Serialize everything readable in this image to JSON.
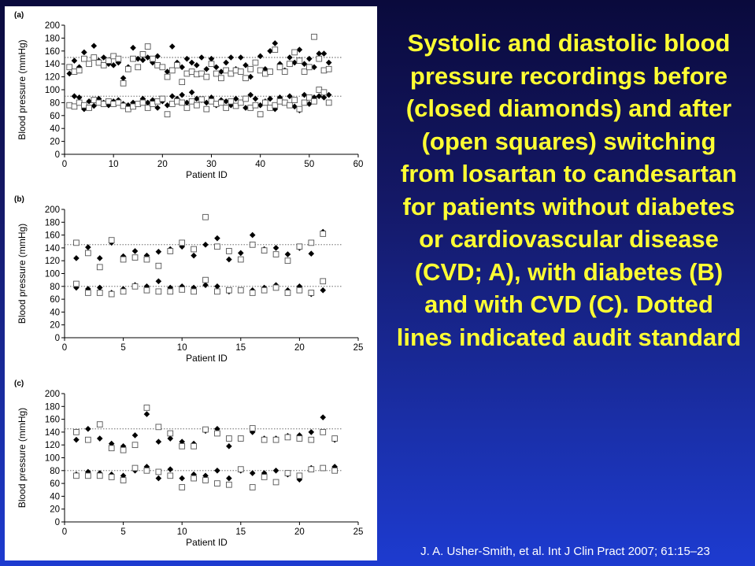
{
  "caption": "Systolic and diastolic blood pressure recordings before (closed diamonds) and after (open squares) switching from losartan to candesartan for patients without diabetes or cardiovascular disease (CVD; A), with diabetes (B) and with CVD (C). Dotted lines indicated audit standard",
  "citation": "J. A. Usher-Smith, et al. Int J Clin Pract 2007; 61:15–23",
  "colors": {
    "caption": "#ffff33",
    "citation": "#ffffff",
    "panel": "#ffffff"
  },
  "chart_data": [
    {
      "type": "scatter",
      "panel_label": "(a)",
      "xlabel": "Patient ID",
      "ylabel": "Blood pressure (mmHg)",
      "xlim": [
        0,
        60
      ],
      "ylim": [
        0,
        200
      ],
      "xticks": [
        0,
        10,
        20,
        30,
        40,
        50,
        60
      ],
      "yticks": [
        0,
        20,
        40,
        60,
        80,
        100,
        120,
        140,
        160,
        180,
        200
      ],
      "reference_lines": [
        150,
        90
      ],
      "series": [
        {
          "name": "before (closed diamonds)",
          "marker": "diamond",
          "x": [
            1,
            2,
            3,
            4,
            5,
            6,
            7,
            8,
            9,
            10,
            11,
            12,
            13,
            14,
            15,
            16,
            17,
            18,
            19,
            20,
            21,
            22,
            23,
            24,
            25,
            26,
            27,
            28,
            29,
            30,
            31,
            32,
            33,
            34,
            35,
            36,
            37,
            38,
            39,
            40,
            41,
            42,
            43,
            44,
            45,
            46,
            47,
            48,
            49,
            50,
            51,
            52,
            53,
            54
          ],
          "systolic": [
            125,
            145,
            135,
            158,
            140,
            168,
            145,
            150,
            140,
            138,
            142,
            118,
            135,
            165,
            148,
            146,
            150,
            142,
            152,
            135,
            128,
            167,
            142,
            135,
            148,
            142,
            138,
            150,
            132,
            148,
            135,
            128,
            142,
            150,
            132,
            150,
            138,
            120,
            142,
            152,
            132,
            160,
            172,
            140,
            130,
            150,
            142,
            162,
            140,
            148,
            135,
            156,
            156,
            142
          ],
          "diastolic": [
            76,
            90,
            88,
            70,
            82,
            75,
            86,
            80,
            76,
            82,
            84,
            78,
            76,
            80,
            78,
            86,
            80,
            84,
            72,
            82,
            76,
            90,
            86,
            92,
            80,
            96,
            86,
            84,
            80,
            88,
            76,
            84,
            82,
            76,
            86,
            80,
            72,
            92,
            86,
            76,
            82,
            86,
            70,
            88,
            80,
            90,
            74,
            68,
            92,
            78,
            88,
            90,
            88,
            92
          ]
        },
        {
          "name": "after (open squares)",
          "marker": "square",
          "x": [
            1,
            2,
            3,
            4,
            5,
            6,
            7,
            8,
            9,
            10,
            11,
            12,
            13,
            14,
            15,
            16,
            17,
            18,
            19,
            20,
            21,
            22,
            23,
            24,
            25,
            26,
            27,
            28,
            29,
            30,
            31,
            32,
            33,
            34,
            35,
            36,
            37,
            38,
            39,
            40,
            41,
            42,
            43,
            44,
            45,
            46,
            47,
            48,
            49,
            50,
            51,
            52,
            53,
            54
          ],
          "systolic": [
            135,
            128,
            130,
            148,
            140,
            150,
            142,
            138,
            145,
            152,
            148,
            110,
            132,
            148,
            135,
            155,
            167,
            148,
            138,
            135,
            120,
            130,
            138,
            112,
            125,
            128,
            124,
            125,
            120,
            140,
            125,
            118,
            130,
            125,
            130,
            128,
            118,
            132,
            142,
            130,
            125,
            128,
            162,
            135,
            128,
            140,
            158,
            145,
            128,
            135,
            182,
            148,
            130,
            132
          ],
          "diastolic": [
            76,
            74,
            80,
            76,
            72,
            84,
            80,
            78,
            82,
            78,
            80,
            75,
            70,
            74,
            78,
            80,
            72,
            78,
            82,
            86,
            62,
            78,
            82,
            80,
            72,
            82,
            76,
            85,
            70,
            82,
            78,
            80,
            72,
            82,
            75,
            80,
            86,
            72,
            76,
            62,
            80,
            72,
            76,
            82,
            80,
            76,
            84,
            70,
            80,
            88,
            82,
            100,
            96,
            80
          ]
        }
      ]
    },
    {
      "type": "scatter",
      "panel_label": "(b)",
      "xlabel": "Patient ID",
      "ylabel": "Blood pressure (mmHg)",
      "xlim": [
        0,
        25
      ],
      "ylim": [
        0,
        200
      ],
      "xticks": [
        0,
        5,
        10,
        15,
        20,
        25
      ],
      "yticks": [
        0,
        20,
        40,
        60,
        80,
        100,
        120,
        140,
        160,
        180,
        200
      ],
      "reference_lines": [
        145,
        80
      ],
      "series": [
        {
          "name": "before (closed diamonds)",
          "marker": "diamond",
          "x": [
            1,
            2,
            3,
            4,
            5,
            6,
            7,
            8,
            9,
            10,
            11,
            12,
            13,
            14,
            15,
            16,
            17,
            18,
            19,
            20,
            21,
            22
          ],
          "systolic": [
            124,
            141,
            124,
            148,
            127,
            135,
            128,
            134,
            138,
            142,
            128,
            145,
            155,
            122,
            132,
            160,
            138,
            140,
            130,
            140,
            131,
            165
          ],
          "diastolic": [
            78,
            76,
            78,
            70,
            76,
            82,
            80,
            88,
            78,
            80,
            78,
            82,
            80,
            72,
            74,
            74,
            78,
            82,
            74,
            80,
            68,
            74
          ]
        },
        {
          "name": "after (open squares)",
          "marker": "square",
          "x": [
            1,
            2,
            3,
            4,
            5,
            6,
            7,
            8,
            9,
            10,
            11,
            12,
            13,
            14,
            15,
            16,
            17,
            18,
            19,
            20,
            21,
            22
          ],
          "systolic": [
            148,
            132,
            110,
            152,
            122,
            125,
            122,
            112,
            135,
            148,
            138,
            188,
            142,
            135,
            122,
            145,
            136,
            130,
            120,
            142,
            148,
            162
          ],
          "diastolic": [
            84,
            70,
            70,
            68,
            72,
            80,
            74,
            72,
            72,
            75,
            72,
            90,
            72,
            74,
            74,
            70,
            74,
            78,
            70,
            74,
            70,
            88
          ]
        }
      ]
    },
    {
      "type": "scatter",
      "panel_label": "(c)",
      "xlabel": "Patient ID",
      "ylabel": "Blood pressure (mmHg)",
      "xlim": [
        0,
        25
      ],
      "ylim": [
        0,
        200
      ],
      "xticks": [
        0,
        5,
        10,
        15,
        20,
        25
      ],
      "yticks": [
        0,
        20,
        40,
        60,
        80,
        100,
        120,
        140,
        160,
        180,
        200
      ],
      "reference_lines": [
        145,
        80
      ],
      "series": [
        {
          "name": "before (closed diamonds)",
          "marker": "diamond",
          "x": [
            1,
            2,
            3,
            4,
            5,
            6,
            7,
            8,
            9,
            10,
            11,
            12,
            13,
            14,
            15,
            16,
            17,
            18,
            19,
            20,
            21,
            22,
            23
          ],
          "systolic": [
            128,
            145,
            130,
            122,
            118,
            135,
            168,
            125,
            130,
            125,
            122,
            142,
            145,
            118,
            130,
            140,
            130,
            130,
            134,
            135,
            140,
            163,
            128
          ],
          "diastolic": [
            74,
            78,
            76,
            74,
            72,
            80,
            86,
            68,
            82,
            68,
            74,
            72,
            80,
            68,
            80,
            76,
            76,
            80,
            74,
            66,
            84,
            84,
            86
          ]
        },
        {
          "name": "after (open squares)",
          "marker": "square",
          "x": [
            1,
            2,
            3,
            4,
            5,
            6,
            7,
            8,
            9,
            10,
            11,
            12,
            13,
            14,
            15,
            16,
            17,
            18,
            19,
            20,
            21,
            22,
            23
          ],
          "systolic": [
            140,
            128,
            152,
            115,
            112,
            120,
            178,
            148,
            138,
            118,
            118,
            144,
            138,
            130,
            130,
            146,
            128,
            128,
            132,
            130,
            128,
            140,
            130
          ],
          "diastolic": [
            72,
            72,
            72,
            70,
            65,
            84,
            80,
            78,
            72,
            54,
            68,
            65,
            60,
            58,
            82,
            54,
            70,
            62,
            76,
            72,
            82,
            84,
            80
          ]
        }
      ]
    }
  ]
}
